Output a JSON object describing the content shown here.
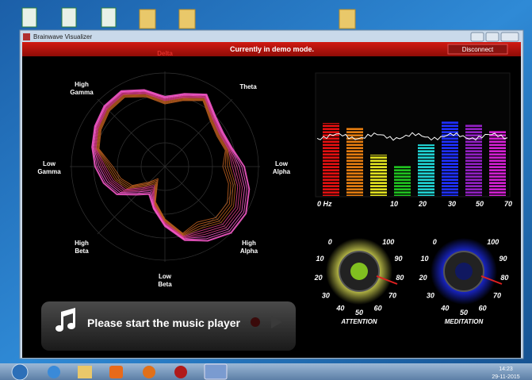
{
  "window": {
    "title": "Brainwave Visualizer",
    "banner": "Currently in demo mode.",
    "button": "Disconnect"
  },
  "radar": {
    "labels": [
      [
        "Delta"
      ],
      [
        "High",
        "Gamma"
      ],
      [
        "Theta"
      ],
      [
        "Low",
        "Gamma"
      ],
      [
        "Low",
        "Alpha"
      ],
      [
        "High",
        "Beta"
      ],
      [
        "High",
        "Alpha"
      ],
      [
        "Low",
        "Beta"
      ]
    ]
  },
  "spectrum": {
    "axis_labels": [
      "0 Hz",
      "10",
      "20",
      "30",
      "50",
      "70"
    ]
  },
  "gauges": [
    {
      "label": "ATTENTION",
      "ticks": [
        "0",
        "10",
        "20",
        "30",
        "40",
        "50",
        "60",
        "70",
        "80",
        "90",
        "100"
      ]
    },
    {
      "label": "MEDITATION",
      "ticks": [
        "0",
        "10",
        "20",
        "30",
        "40",
        "50",
        "60",
        "70",
        "80",
        "90",
        "100"
      ]
    }
  ],
  "player": {
    "message": "Please start the music player"
  },
  "taskbar": {
    "time": "14:23",
    "date": "29-11-2015"
  }
}
